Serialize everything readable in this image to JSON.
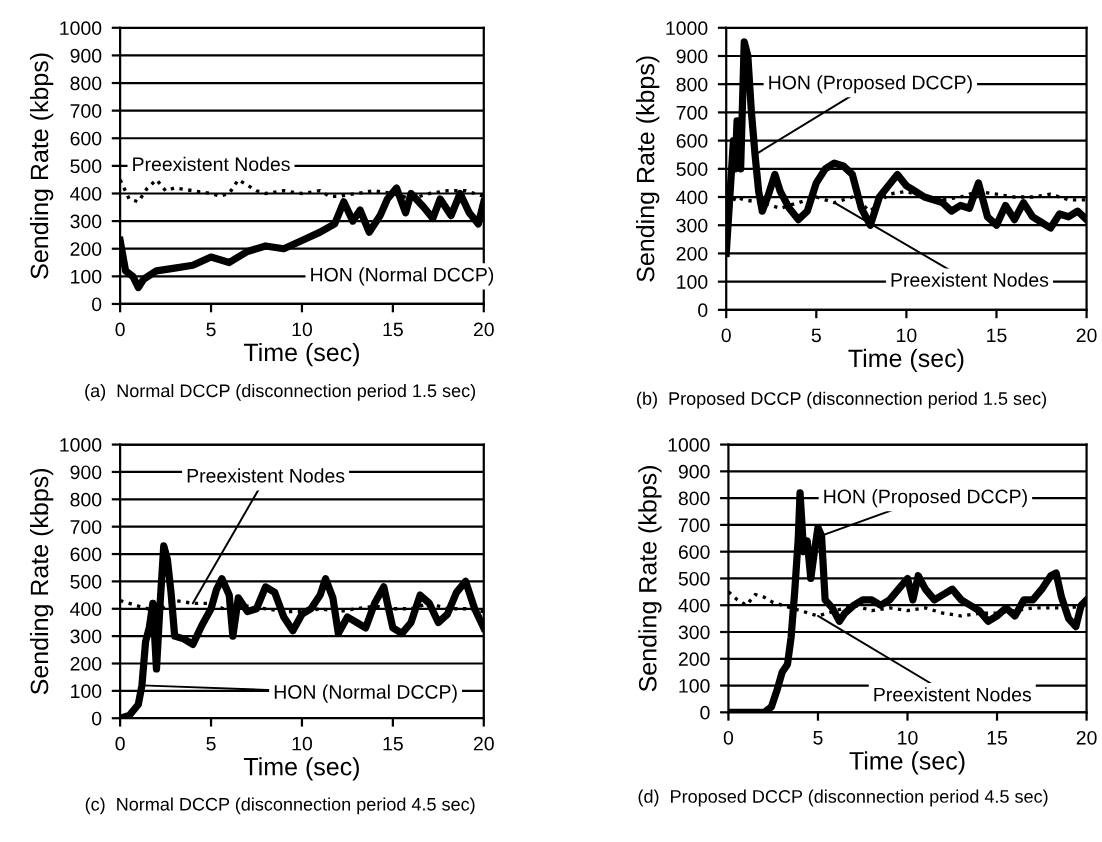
{
  "chart_data": [
    {
      "type": "line",
      "title": "(a)  Normal DCCP (disconnection period 1.5 sec)",
      "xlabel": "Time (sec)",
      "ylabel": "Sending Rate (kbps)",
      "xlim": [
        0,
        20
      ],
      "xticks": [
        0,
        5,
        10,
        15,
        20
      ],
      "ylim": [
        0,
        1000
      ],
      "yticks": [
        0,
        100,
        200,
        300,
        400,
        500,
        600,
        700,
        800,
        900,
        1000
      ],
      "grid": "y",
      "legend": false,
      "marker": "none",
      "series": [
        {
          "name": "Preexistent Nodes",
          "color": "#000000",
          "line_style": "dotted",
          "x": [
            0,
            0.5,
            1,
            1.5,
            2,
            2.5,
            3,
            4,
            5,
            5.5,
            6,
            6.5,
            7,
            7.5,
            8,
            9,
            10,
            11,
            11.5,
            12,
            13,
            14,
            15,
            16,
            17,
            18,
            19,
            20
          ],
          "values": [
            450,
            380,
            370,
            420,
            450,
            410,
            420,
            410,
            400,
            390,
            400,
            450,
            430,
            410,
            400,
            410,
            400,
            410,
            390,
            390,
            400,
            410,
            400,
            380,
            400,
            410,
            410,
            390
          ]
        },
        {
          "name": "HON (Normal DCCP)",
          "color": "#000000",
          "line_style": "solid",
          "x": [
            0,
            0.3,
            0.7,
            1.0,
            1.3,
            2,
            3,
            4,
            5,
            6,
            7,
            8,
            9,
            10,
            11,
            11.8,
            12.3,
            12.8,
            13.2,
            13.7,
            14.3,
            14.7,
            15.2,
            15.7,
            16,
            16.7,
            17.2,
            17.6,
            18.2,
            18.7,
            19.2,
            19.7,
            20
          ],
          "values": [
            230,
            120,
            100,
            60,
            90,
            120,
            130,
            140,
            170,
            150,
            190,
            210,
            200,
            230,
            260,
            290,
            370,
            300,
            340,
            260,
            320,
            380,
            420,
            330,
            400,
            350,
            310,
            380,
            320,
            400,
            330,
            290,
            370
          ]
        }
      ]
    },
    {
      "type": "line",
      "title": "(b)  Proposed DCCP (disconnection period 1.5 sec)",
      "xlabel": "Time (sec)",
      "ylabel": "Sending Rate (kbps)",
      "xlim": [
        0,
        20
      ],
      "xticks": [
        0,
        5,
        10,
        15,
        20
      ],
      "ylim": [
        0,
        1000
      ],
      "yticks": [
        0,
        100,
        200,
        300,
        400,
        500,
        600,
        700,
        800,
        900,
        1000
      ],
      "grid": "y",
      "legend": false,
      "marker": "none",
      "series": [
        {
          "name": "Preexistent Nodes",
          "color": "#000000",
          "line_style": "dotted",
          "x": [
            0,
            0.5,
            1,
            2,
            3,
            4,
            5,
            6,
            7,
            8,
            9,
            10,
            11,
            12,
            13,
            14,
            15,
            16,
            17,
            18,
            19,
            20
          ],
          "values": [
            330,
            400,
            390,
            380,
            360,
            380,
            400,
            380,
            400,
            350,
            410,
            420,
            400,
            390,
            400,
            420,
            410,
            400,
            400,
            410,
            390,
            390
          ]
        },
        {
          "name": "HON (Proposed DCCP)",
          "color": "#000000",
          "line_style": "solid",
          "x": [
            0,
            0.2,
            0.4,
            0.5,
            0.6,
            0.8,
            1.0,
            1.2,
            1.4,
            1.6,
            1.8,
            2.0,
            2.3,
            2.7,
            3.0,
            3.5,
            4,
            4.5,
            5,
            5.5,
            6,
            6.5,
            7,
            7.5,
            8,
            8.5,
            9,
            9.5,
            10,
            10.5,
            11,
            12,
            12.5,
            13,
            13.5,
            14,
            14.5,
            15,
            15.5,
            16,
            16.5,
            17,
            17.5,
            18,
            18.5,
            19,
            19.5,
            20
          ],
          "values": [
            200,
            400,
            600,
            500,
            670,
            500,
            950,
            900,
            700,
            550,
            420,
            350,
            400,
            480,
            420,
            360,
            320,
            350,
            450,
            500,
            520,
            510,
            480,
            360,
            300,
            400,
            440,
            480,
            440,
            420,
            400,
            380,
            350,
            370,
            360,
            450,
            330,
            300,
            370,
            320,
            380,
            330,
            310,
            290,
            340,
            330,
            350,
            320
          ]
        }
      ]
    },
    {
      "type": "line",
      "title": "(c)  Normal DCCP (disconnection period 4.5 sec)",
      "xlabel": "Time (sec)",
      "ylabel": "Sending Rate (kbps)",
      "xlim": [
        0,
        20
      ],
      "xticks": [
        0,
        5,
        10,
        15,
        20
      ],
      "ylim": [
        0,
        1000
      ],
      "yticks": [
        0,
        100,
        200,
        300,
        400,
        500,
        600,
        700,
        800,
        900,
        1000
      ],
      "grid": "y",
      "legend": false,
      "marker": "none",
      "series": [
        {
          "name": "Preexistent Nodes",
          "color": "#000000",
          "line_style": "dotted",
          "x": [
            0,
            1,
            2,
            3,
            4,
            5,
            6,
            7,
            8,
            9,
            10,
            11,
            12,
            13,
            14,
            15,
            16,
            17,
            18,
            19,
            20
          ],
          "values": [
            430,
            410,
            390,
            430,
            420,
            420,
            390,
            410,
            400,
            390,
            390,
            400,
            390,
            400,
            410,
            400,
            400,
            420,
            400,
            400,
            390
          ]
        },
        {
          "name": "HON (Normal DCCP)",
          "color": "#000000",
          "line_style": "solid",
          "x": [
            0,
            0.5,
            1,
            1.2,
            1.4,
            1.6,
            1.8,
            2.0,
            2.2,
            2.4,
            2.6,
            2.8,
            3,
            3.5,
            4,
            4.5,
            5,
            5.3,
            5.6,
            6,
            6.2,
            6.5,
            7,
            7.5,
            8,
            8.5,
            9,
            9.5,
            10,
            10.5,
            11,
            11.3,
            11.7,
            12,
            12.5,
            13,
            13.5,
            14,
            14.5,
            15,
            15.5,
            16,
            16.5,
            17,
            17.5,
            18,
            18.5,
            19,
            19.5,
            20
          ],
          "values": [
            0,
            10,
            50,
            120,
            280,
            330,
            420,
            180,
            420,
            630,
            580,
            460,
            300,
            290,
            270,
            340,
            400,
            470,
            510,
            450,
            300,
            440,
            390,
            400,
            480,
            460,
            370,
            320,
            380,
            400,
            450,
            510,
            440,
            310,
            370,
            350,
            330,
            420,
            480,
            330,
            310,
            350,
            450,
            420,
            350,
            380,
            460,
            500,
            400,
            330
          ]
        }
      ]
    },
    {
      "type": "line",
      "title": "(d)  Proposed DCCP (disconnection period 4.5 sec)",
      "xlabel": "Time (sec)",
      "ylabel": "Sending Rate (kbps)",
      "xlim": [
        0,
        20
      ],
      "xticks": [
        0,
        5,
        10,
        15,
        20
      ],
      "ylim": [
        0,
        1000
      ],
      "yticks": [
        0,
        100,
        200,
        300,
        400,
        500,
        600,
        700,
        800,
        900,
        1000
      ],
      "grid": "y",
      "legend": false,
      "marker": "none",
      "series": [
        {
          "name": "Preexistent Nodes",
          "color": "#000000",
          "line_style": "dotted",
          "x": [
            0,
            0.5,
            1,
            1.5,
            2,
            2.5,
            3,
            4,
            5,
            6,
            7,
            8,
            9,
            10,
            11,
            12,
            13,
            14,
            15,
            16,
            17,
            18,
            19,
            20
          ],
          "values": [
            450,
            420,
            400,
            440,
            430,
            410,
            400,
            380,
            360,
            380,
            400,
            380,
            390,
            380,
            390,
            370,
            360,
            370,
            370,
            380,
            390,
            390,
            390,
            400
          ]
        },
        {
          "name": "HON (Proposed DCCP)",
          "color": "#000000",
          "line_style": "solid",
          "x": [
            0,
            2,
            2.4,
            2.7,
            3,
            3.3,
            3.5,
            3.7,
            3.9,
            4.0,
            4.2,
            4.4,
            4.6,
            4.8,
            5.0,
            5.2,
            5.4,
            5.8,
            6.2,
            6.5,
            7,
            7.5,
            8,
            8.5,
            9,
            9.5,
            10,
            10.3,
            10.6,
            11,
            11.5,
            12,
            12.5,
            13,
            13.5,
            14,
            14.5,
            15,
            15.5,
            16,
            16.5,
            17,
            17.5,
            18,
            18.3,
            18.6,
            19,
            19.4,
            19.7,
            20
          ],
          "values": [
            0,
            0,
            20,
            80,
            150,
            180,
            280,
            450,
            650,
            820,
            600,
            640,
            500,
            600,
            690,
            660,
            420,
            390,
            340,
            370,
            400,
            420,
            420,
            400,
            420,
            460,
            500,
            420,
            510,
            460,
            420,
            440,
            460,
            420,
            400,
            380,
            340,
            360,
            390,
            360,
            420,
            420,
            460,
            510,
            520,
            430,
            350,
            320,
            400,
            420
          ]
        }
      ]
    }
  ]
}
